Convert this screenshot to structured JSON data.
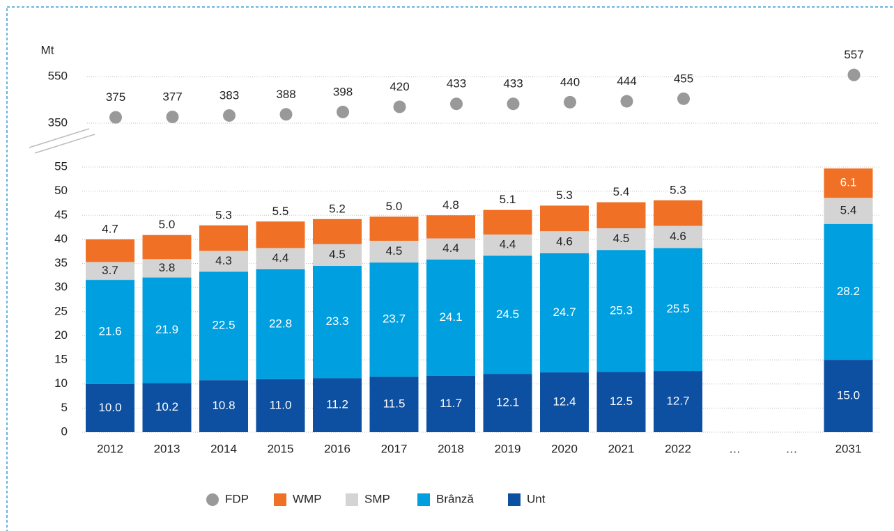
{
  "chart_data": {
    "type": "bar",
    "stacked": true,
    "y_label": "Mt",
    "categories": [
      "2012",
      "2013",
      "2014",
      "2015",
      "2016",
      "2017",
      "2018",
      "2019",
      "2020",
      "2021",
      "2022",
      "…",
      "…",
      "2031"
    ],
    "ylim": [
      0,
      55
    ],
    "yticks": [
      0,
      5,
      10,
      15,
      20,
      25,
      30,
      35,
      40,
      45,
      50,
      55
    ],
    "y2lim": [
      350,
      550
    ],
    "y2ticks": [
      350,
      550
    ],
    "grid": true,
    "legend": "bottom",
    "series": [
      {
        "name": "FDP",
        "type": "scatter",
        "axis": "y2",
        "color": "#999999",
        "values": [
          375,
          377,
          383,
          388,
          398,
          420,
          433,
          433,
          440,
          444,
          455,
          null,
          null,
          557
        ]
      },
      {
        "name": "WMP",
        "color": "#f07025",
        "values": [
          4.7,
          5.0,
          5.3,
          5.5,
          5.2,
          5.0,
          4.8,
          5.1,
          5.3,
          5.4,
          5.3,
          null,
          null,
          6.1
        ],
        "value_labels": [
          "4.7",
          "5.0",
          "5.3",
          "5.5",
          "5.2",
          "5.0",
          "4.8",
          "5.1",
          "5.3",
          "5.4",
          "5.3",
          null,
          null,
          "6.1"
        ]
      },
      {
        "name": "SMP",
        "color": "#d4d4d4",
        "values": [
          3.7,
          3.8,
          4.3,
          4.4,
          4.5,
          4.5,
          4.4,
          4.4,
          4.6,
          4.5,
          4.6,
          null,
          null,
          5.4
        ]
      },
      {
        "name": "Brânză",
        "color": "#009fe0",
        "values": [
          21.6,
          21.9,
          22.5,
          22.8,
          23.3,
          23.7,
          24.1,
          24.5,
          24.7,
          25.3,
          25.5,
          null,
          null,
          28.2
        ]
      },
      {
        "name": "Unt",
        "color": "#0d4fa0",
        "values": [
          10.0,
          10.2,
          10.8,
          11.0,
          11.2,
          11.5,
          11.7,
          12.1,
          12.4,
          12.5,
          12.7,
          null,
          null,
          15.0
        ],
        "value_labels": [
          "10.0",
          "10.2",
          "10.8",
          "11.0",
          "11.2",
          "11.5",
          "11.7",
          "12.1",
          "12.4",
          "12.5",
          "12.7",
          null,
          null,
          "15.0"
        ]
      }
    ]
  }
}
